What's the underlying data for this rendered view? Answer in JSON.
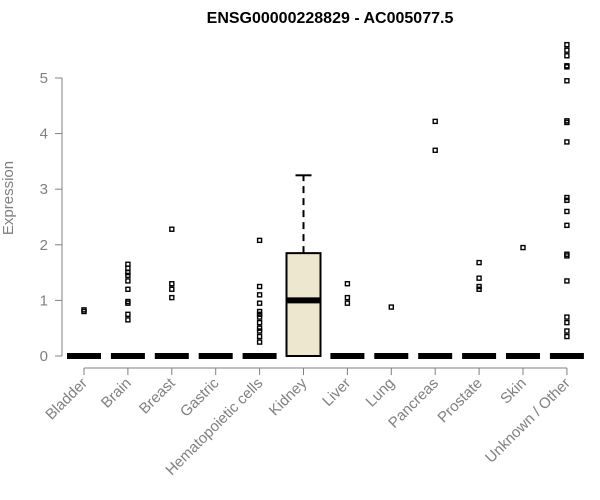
{
  "chart_data": {
    "type": "box",
    "title": "ENSG00000228829 - AC005077.5",
    "ylabel": "Expression",
    "xlabel": "",
    "ylim": [
      0,
      5.65
    ],
    "yticks": [
      "0",
      "1",
      "2",
      "3",
      "4",
      "5"
    ],
    "box_fill": "#ede7cf",
    "categories": [
      "Bladder",
      "Brain",
      "Breast",
      "Gastric",
      "Hematopoietic cells",
      "Kidney",
      "Liver",
      "Lung",
      "Pancreas",
      "Prostate",
      "Skin",
      "Unknown / Other"
    ],
    "boxes": [
      {
        "q1": 0,
        "median": 0,
        "q3": 0,
        "whisker_low": 0,
        "whisker_high": 0,
        "outliers": [
          0.8,
          0.83
        ]
      },
      {
        "q1": 0,
        "median": 0,
        "q3": 0,
        "whisker_low": 0,
        "whisker_high": 0,
        "outliers": [
          0.65,
          0.75,
          0.95,
          0.98,
          1.2,
          1.35,
          1.45,
          1.5,
          1.58,
          1.65
        ]
      },
      {
        "q1": 0,
        "median": 0,
        "q3": 0,
        "whisker_low": 0,
        "whisker_high": 0,
        "outliers": [
          1.05,
          1.2,
          1.3,
          2.28
        ]
      },
      {
        "q1": 0,
        "median": 0,
        "q3": 0,
        "whisker_low": 0,
        "whisker_high": 0,
        "outliers": []
      },
      {
        "q1": 0,
        "median": 0,
        "q3": 0,
        "whisker_low": 0,
        "whisker_high": 0,
        "outliers": [
          0.25,
          0.35,
          0.45,
          0.5,
          0.6,
          0.7,
          0.75,
          0.8,
          0.95,
          1.1,
          1.25,
          2.08
        ]
      },
      {
        "q1": 0,
        "median": 1.0,
        "q3": 1.85,
        "whisker_low": 0,
        "whisker_high": 3.25,
        "outliers": []
      },
      {
        "q1": 0,
        "median": 0,
        "q3": 0,
        "whisker_low": 0,
        "whisker_high": 0,
        "outliers": [
          0.95,
          1.05,
          1.3
        ]
      },
      {
        "q1": 0,
        "median": 0,
        "q3": 0,
        "whisker_low": 0,
        "whisker_high": 0,
        "outliers": [
          0.88
        ]
      },
      {
        "q1": 0,
        "median": 0,
        "q3": 0,
        "whisker_low": 0,
        "whisker_high": 0,
        "outliers": [
          3.7,
          4.22
        ]
      },
      {
        "q1": 0,
        "median": 0,
        "q3": 0,
        "whisker_low": 0,
        "whisker_high": 0,
        "outliers": [
          1.2,
          1.25,
          1.4,
          1.68
        ]
      },
      {
        "q1": 0,
        "median": 0,
        "q3": 0,
        "whisker_low": 0,
        "whisker_high": 0,
        "outliers": [
          1.95
        ]
      },
      {
        "q1": 0,
        "median": 0,
        "q3": 0,
        "whisker_low": 0,
        "whisker_high": 0,
        "outliers": [
          0.35,
          0.45,
          0.6,
          0.7,
          1.35,
          1.8,
          1.83,
          2.35,
          2.6,
          2.8,
          2.85,
          3.85,
          4.2,
          4.23,
          4.95,
          5.2,
          5.22,
          5.4,
          5.5,
          5.6
        ]
      }
    ]
  }
}
